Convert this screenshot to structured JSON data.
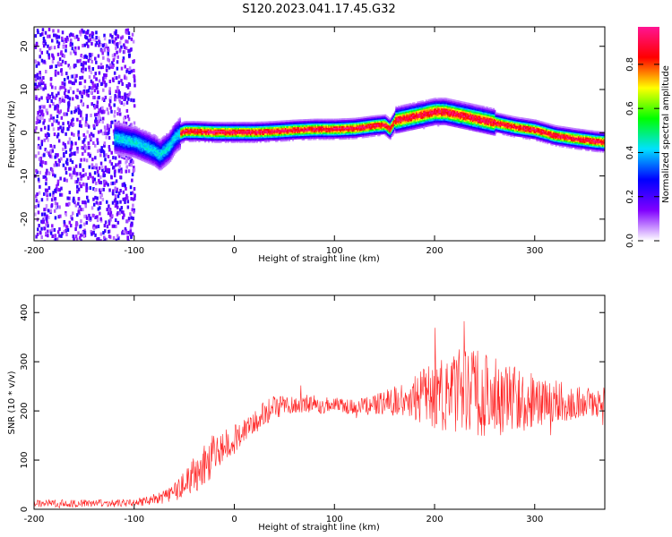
{
  "title": "S120.2023.041.17.45.G32",
  "chart_data": [
    {
      "type": "heatmap",
      "xlabel": "Height of straight line (km)",
      "ylabel": "Frequency (Hz)",
      "xlim": [
        -200,
        370
      ],
      "ylim": [
        -25,
        24.5
      ],
      "xticks": [
        -200,
        -100,
        0,
        100,
        200,
        300
      ],
      "yticks": [
        -20,
        -10,
        0,
        10,
        20
      ],
      "colorbar": {
        "label": "Normalized spectral amplitude",
        "range": [
          0,
          0.97
        ],
        "ticks": [
          0.0,
          0.2,
          0.4,
          0.6,
          0.8
        ],
        "tick_labels": [
          "0.0",
          "0.2",
          "0.4",
          "0.6",
          "0.8"
        ],
        "colors": [
          "#ffffff",
          "#8000ff",
          "#0000ff",
          "#00e0ff",
          "#00ff00",
          "#ffff00",
          "#ff0000",
          "#ff1493"
        ]
      },
      "ridge": {
        "x": [
          -120,
          -100,
          -90,
          -80,
          -75,
          -70,
          -65,
          -60,
          -55,
          -50,
          -40,
          -20,
          0,
          20,
          40,
          60,
          80,
          100,
          120,
          130,
          140,
          150,
          155,
          160,
          170,
          180,
          190,
          200,
          210,
          220,
          230,
          240,
          250,
          260,
          280,
          300,
          320,
          340,
          360,
          370
        ],
        "y": [
          -1,
          -2,
          -3,
          -4,
          -5,
          -4,
          -3,
          -1,
          0,
          0.5,
          0.5,
          0.3,
          0.3,
          0.3,
          0.5,
          0.8,
          1,
          1,
          1.2,
          1.5,
          1.8,
          2,
          1,
          3,
          3.5,
          4,
          4.5,
          5,
          5,
          4.5,
          4,
          3.5,
          3,
          2.5,
          1.5,
          0.8,
          -0.5,
          -1.2,
          -1.8,
          -2
        ]
      }
    },
    {
      "type": "line",
      "xlabel": "Height of straight line (km)",
      "ylabel": "SNR (10 * v/v)",
      "xlim": [
        -200,
        370
      ],
      "ylim": [
        0,
        435
      ],
      "xticks": [
        -200,
        -100,
        0,
        100,
        200,
        300
      ],
      "yticks": [
        0,
        100,
        200,
        300,
        400
      ],
      "series": [
        {
          "color": "#ff2020",
          "x": [
            -200,
            -180,
            -160,
            -140,
            -120,
            -100,
            -80,
            -70,
            -60,
            -50,
            -40,
            -30,
            -20,
            -10,
            0,
            10,
            20,
            30,
            40,
            50,
            60,
            70,
            80,
            90,
            100,
            110,
            120,
            130,
            140,
            150,
            160,
            170,
            180,
            190,
            200,
            210,
            220,
            230,
            240,
            250,
            260,
            270,
            280,
            290,
            300,
            310,
            320,
            330,
            340,
            350,
            360,
            370
          ],
          "y": [
            12,
            12,
            12,
            12,
            12,
            14,
            18,
            25,
            35,
            50,
            70,
            90,
            115,
            130,
            140,
            165,
            180,
            195,
            205,
            210,
            212,
            215,
            215,
            210,
            215,
            210,
            208,
            210,
            212,
            218,
            220,
            222,
            225,
            228,
            230,
            232,
            235,
            238,
            238,
            235,
            230,
            228,
            225,
            222,
            222,
            220,
            220,
            218,
            218,
            218,
            218,
            218
          ],
          "noise": [
            8,
            8,
            8,
            8,
            8,
            8,
            10,
            15,
            20,
            30,
            40,
            45,
            45,
            35,
            30,
            30,
            28,
            25,
            25,
            22,
            20,
            18,
            18,
            18,
            15,
            15,
            15,
            18,
            20,
            25,
            30,
            35,
            45,
            60,
            70,
            80,
            90,
            100,
            95,
            90,
            85,
            75,
            65,
            60,
            55,
            50,
            45,
            40,
            35,
            30,
            30,
            30
          ]
        }
      ]
    }
  ]
}
